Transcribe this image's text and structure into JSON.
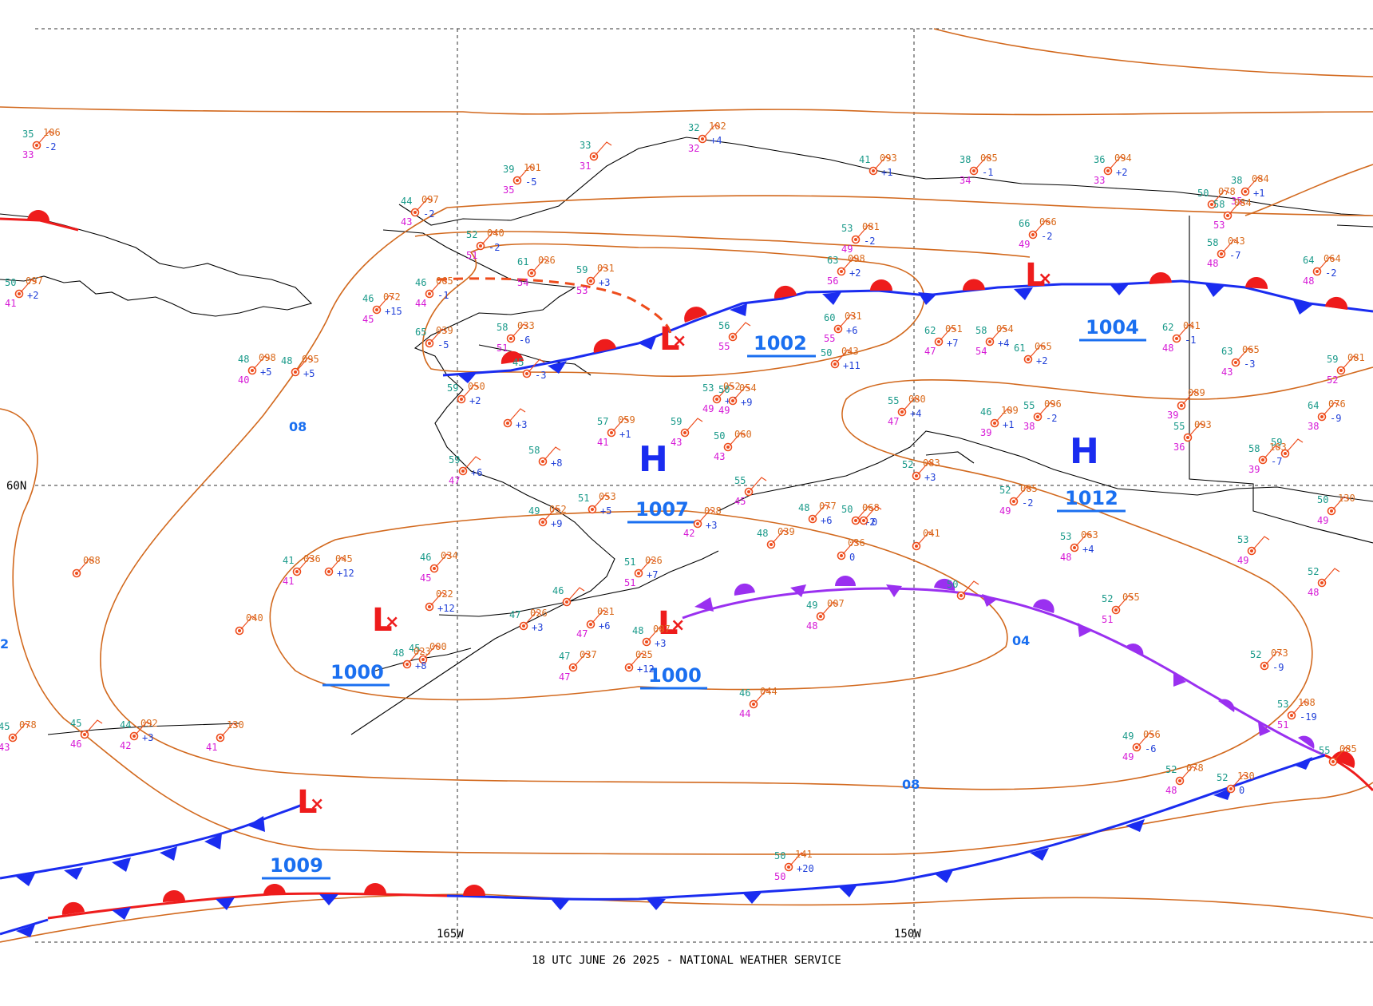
{
  "map": {
    "footer": "18 UTC JUNE 26 2025 - NATIONAL WEATHER SERVICE",
    "lat_label": "60N",
    "lon_labels": [
      "165W",
      "150W"
    ],
    "colors": {
      "isobar": "#d2691e",
      "cold_front": "#1a2cf0",
      "warm_front": "#ee1c1c",
      "occluded": "#9a30f0",
      "high": "#1a2cf0",
      "low": "#ee1c1c",
      "coast": "#000000"
    },
    "pressure_centers": [
      {
        "type": "L",
        "value": ""
      },
      {
        "type": "L",
        "value": "1002"
      },
      {
        "type": "L",
        "value": "1000"
      },
      {
        "type": "L",
        "value": "1000"
      },
      {
        "type": "L",
        "value": "1004"
      },
      {
        "type": "L",
        "value": "1009"
      },
      {
        "type": "H",
        "value": "1007"
      },
      {
        "type": "H",
        "value": "1012"
      }
    ],
    "isobar_labels": [
      "08",
      "04",
      "08",
      "2"
    ],
    "stations": [
      {
        "t": "35",
        "d": "33",
        "p": "106",
        "c": "-2"
      },
      {
        "t": "44",
        "d": "43",
        "p": "097",
        "c": "-2"
      },
      {
        "t": "39",
        "d": "35",
        "p": "101",
        "c": "-5"
      },
      {
        "t": "33",
        "d": "31",
        "p": "",
        "c": ""
      },
      {
        "t": "32",
        "d": "32",
        "p": "102",
        "c": "+4"
      },
      {
        "t": "41",
        "d": "",
        "p": "093",
        "c": "+1"
      },
      {
        "t": "38",
        "d": "34",
        "p": "085",
        "c": "-1"
      },
      {
        "t": "36",
        "d": "33",
        "p": "094",
        "c": "+2"
      },
      {
        "t": "50",
        "d": "",
        "p": "078",
        "c": ""
      },
      {
        "t": "38",
        "d": "35",
        "p": "084",
        "c": "+1"
      },
      {
        "t": "52",
        "d": "51",
        "p": "040",
        "c": "-2"
      },
      {
        "t": "50",
        "d": "41",
        "p": "097",
        "c": "+2"
      },
      {
        "t": "46",
        "d": "44",
        "p": "065",
        "c": "-1"
      },
      {
        "t": "46",
        "d": "45",
        "p": "072",
        "c": "+15"
      },
      {
        "t": "61",
        "d": "54",
        "p": "026",
        "c": ""
      },
      {
        "t": "59",
        "d": "53",
        "p": "031",
        "c": "+3"
      },
      {
        "t": "53",
        "d": "49",
        "p": "081",
        "c": "-2"
      },
      {
        "t": "66",
        "d": "49",
        "p": "066",
        "c": "-2"
      },
      {
        "t": "63",
        "d": "56",
        "p": "098",
        "c": "+2"
      },
      {
        "t": "58",
        "d": "53",
        "p": "084",
        "c": ""
      },
      {
        "t": "58",
        "d": "48",
        "p": "043",
        "c": "-7"
      },
      {
        "t": "64",
        "d": "48",
        "p": "064",
        "c": "-2"
      },
      {
        "t": "65",
        "d": "",
        "p": "039",
        "c": "-5"
      },
      {
        "t": "58",
        "d": "51",
        "p": "033",
        "c": "-6"
      },
      {
        "t": "60",
        "d": "55",
        "p": "031",
        "c": "+6"
      },
      {
        "t": "56",
        "d": "55",
        "p": "",
        "c": ""
      },
      {
        "t": "62",
        "d": "47",
        "p": "051",
        "c": "+7"
      },
      {
        "t": "58",
        "d": "54",
        "p": "054",
        "c": "+4"
      },
      {
        "t": "62",
        "d": "48",
        "p": "041",
        "c": "-1"
      },
      {
        "t": "48",
        "d": "40",
        "p": "098",
        "c": "+5"
      },
      {
        "t": "48",
        "d": "",
        "p": "095",
        "c": "+5"
      },
      {
        "t": "50",
        "d": "",
        "p": "043",
        "c": "+11"
      },
      {
        "t": "61",
        "d": "",
        "p": "065",
        "c": "+2"
      },
      {
        "t": "63",
        "d": "43",
        "p": "065",
        "c": "-3"
      },
      {
        "t": "59",
        "d": "52",
        "p": "081",
        "c": ""
      },
      {
        "t": "45",
        "d": "",
        "p": "",
        "c": "-3"
      },
      {
        "t": "59",
        "d": "",
        "p": "050",
        "c": "+2"
      },
      {
        "t": "53",
        "d": "49",
        "p": "052",
        "c": "+7"
      },
      {
        "t": "50",
        "d": "49",
        "p": "054",
        "c": "+9"
      },
      {
        "t": "",
        "d": "",
        "p": "",
        "c": "+3"
      },
      {
        "t": "57",
        "d": "41",
        "p": "059",
        "c": "+1"
      },
      {
        "t": "59",
        "d": "43",
        "p": "",
        "c": ""
      },
      {
        "t": "50",
        "d": "43",
        "p": "060",
        "c": ""
      },
      {
        "t": "55",
        "d": "47",
        "p": "080",
        "c": "+4"
      },
      {
        "t": "46",
        "d": "39",
        "p": "109",
        "c": "+1"
      },
      {
        "t": "55",
        "d": "38",
        "p": "096",
        "c": "-2"
      },
      {
        "t": "",
        "d": "39",
        "p": "089",
        "c": ""
      },
      {
        "t": "64",
        "d": "38",
        "p": "076",
        "c": "-9"
      },
      {
        "t": "58",
        "d": "",
        "p": "",
        "c": "+8"
      },
      {
        "t": "59",
        "d": "47",
        "p": "",
        "c": "+6"
      },
      {
        "t": "55",
        "d": "36",
        "p": "093",
        "c": ""
      },
      {
        "t": "58",
        "d": "39",
        "p": "103",
        "c": "-7"
      },
      {
        "t": "51",
        "d": "",
        "p": "053",
        "c": "+5"
      },
      {
        "t": "49",
        "d": "",
        "p": "052",
        "c": "+9"
      },
      {
        "t": "",
        "d": "42",
        "p": "028",
        "c": "+3"
      },
      {
        "t": "55",
        "d": "45",
        "p": "",
        "c": ""
      },
      {
        "t": "48",
        "d": "",
        "p": "077",
        "c": "+6"
      },
      {
        "t": "50",
        "d": "",
        "p": "068",
        "c": "+2"
      },
      {
        "t": "",
        "d": "",
        "p": "",
        "c": "0"
      },
      {
        "t": "52",
        "d": "",
        "p": "083",
        "c": "+3"
      },
      {
        "t": "52",
        "d": "49",
        "p": "085",
        "c": "-2"
      },
      {
        "t": "",
        "d": "",
        "p": "041",
        "c": ""
      },
      {
        "t": "53",
        "d": "48",
        "p": "063",
        "c": "+4"
      },
      {
        "t": "41",
        "d": "41",
        "p": "036",
        "c": ""
      },
      {
        "t": "",
        "d": "",
        "p": "045",
        "c": "+12"
      },
      {
        "t": "46",
        "d": "45",
        "p": "034",
        "c": ""
      },
      {
        "t": "",
        "d": "",
        "p": "088",
        "c": ""
      },
      {
        "t": "",
        "d": "",
        "p": "022",
        "c": "+12"
      },
      {
        "t": "48",
        "d": "",
        "p": "039",
        "c": ""
      },
      {
        "t": "",
        "d": "",
        "p": "036",
        "c": "0"
      },
      {
        "t": "51",
        "d": "51",
        "p": "026",
        "c": "+7"
      },
      {
        "t": "46",
        "d": "",
        "p": "",
        "c": ""
      },
      {
        "t": "47",
        "d": "",
        "p": "026",
        "c": "+3"
      },
      {
        "t": "",
        "d": "47",
        "p": "021",
        "c": "+6"
      },
      {
        "t": "48",
        "d": "",
        "p": "007",
        "c": "+3"
      },
      {
        "t": "49",
        "d": "48",
        "p": "007",
        "c": ""
      },
      {
        "t": "50",
        "d": "",
        "p": "",
        "c": ""
      },
      {
        "t": "52",
        "d": "51",
        "p": "055",
        "c": ""
      },
      {
        "t": "52",
        "d": "",
        "p": "073",
        "c": "-9"
      },
      {
        "t": "",
        "d": "",
        "p": "040",
        "c": ""
      },
      {
        "t": "45",
        "d": "",
        "p": "000",
        "c": ""
      },
      {
        "t": "48",
        "d": "",
        "p": "023",
        "c": "+8"
      },
      {
        "t": "47",
        "d": "47",
        "p": "037",
        "c": ""
      },
      {
        "t": "",
        "d": "",
        "p": "025",
        "c": "+12"
      },
      {
        "t": "46",
        "d": "44",
        "p": "044",
        "c": ""
      },
      {
        "t": "53",
        "d": "51",
        "p": "108",
        "c": "-19"
      },
      {
        "t": "49",
        "d": "49",
        "p": "056",
        "c": "-6"
      },
      {
        "t": "45",
        "d": "46",
        "p": "",
        "c": ""
      },
      {
        "t": "44",
        "d": "42",
        "p": "092",
        "c": "+3"
      },
      {
        "t": "45",
        "d": "43",
        "p": "078",
        "c": ""
      },
      {
        "t": "",
        "d": "41",
        "p": "130",
        "c": ""
      },
      {
        "t": "52",
        "d": "48",
        "p": "078",
        "c": ""
      },
      {
        "t": "52",
        "d": "",
        "p": "130",
        "c": "0"
      },
      {
        "t": "55",
        "d": "",
        "p": "085",
        "c": ""
      },
      {
        "t": "50",
        "d": "50",
        "p": "141",
        "c": "+20"
      },
      {
        "t": "50",
        "d": "49",
        "p": "130",
        "c": ""
      },
      {
        "t": "53",
        "d": "49",
        "p": "",
        "c": ""
      },
      {
        "t": "52",
        "d": "48",
        "p": "",
        "c": ""
      },
      {
        "t": "59",
        "d": "",
        "p": "",
        "c": ""
      }
    ]
  }
}
